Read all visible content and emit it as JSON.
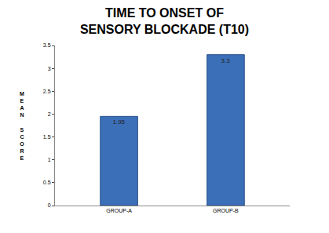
{
  "chart_data": {
    "type": "bar",
    "title": "TIME TO ONSET OF\nSENSORY BLOCKADE (T10)",
    "y_label": "MEAN SCORE",
    "categories": [
      "GROUP-A",
      "GROUP-B"
    ],
    "values": [
      1.95,
      3.3
    ],
    "value_labels": [
      "1.95",
      "3.3"
    ],
    "color": "#3b6fb8",
    "ylim": [
      0,
      3.5
    ],
    "yticks": [
      0,
      0.5,
      1,
      1.5,
      2,
      2.5,
      3,
      3.5
    ],
    "grid": false,
    "data_labels": true
  }
}
